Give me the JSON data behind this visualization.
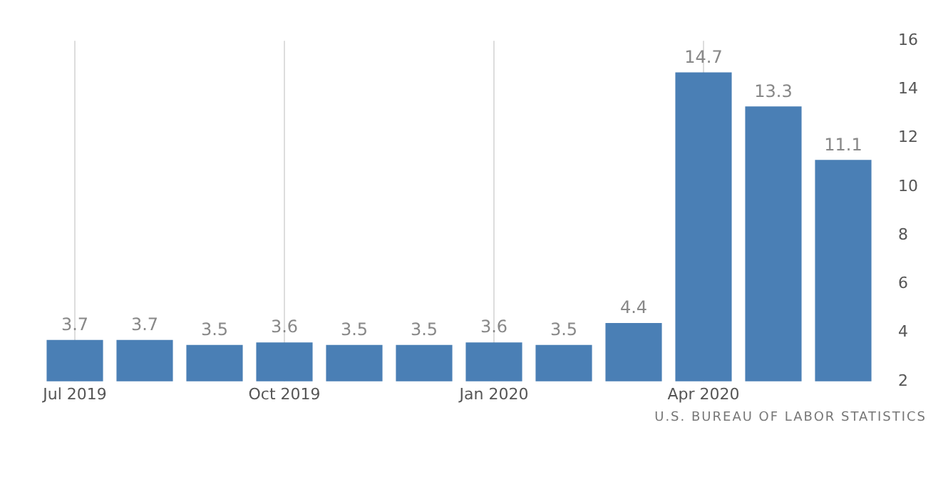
{
  "chart_data": {
    "type": "bar",
    "categories": [
      "Jul 2019",
      null,
      null,
      "Oct 2019",
      null,
      null,
      "Jan 2020",
      null,
      null,
      "Apr 2020",
      null,
      null
    ],
    "values": [
      3.7,
      3.7,
      3.5,
      3.6,
      3.5,
      3.5,
      3.6,
      3.5,
      4.4,
      14.7,
      13.3,
      11.1
    ],
    "color": "#4a7fb5",
    "ylim": [
      2,
      16
    ],
    "yticks": [
      2,
      4,
      6,
      8,
      10,
      12,
      14,
      16
    ],
    "grid": "x",
    "data_labels": true,
    "annotations": [
      "U.S. BUREAU OF LABOR STATISTICS"
    ]
  }
}
